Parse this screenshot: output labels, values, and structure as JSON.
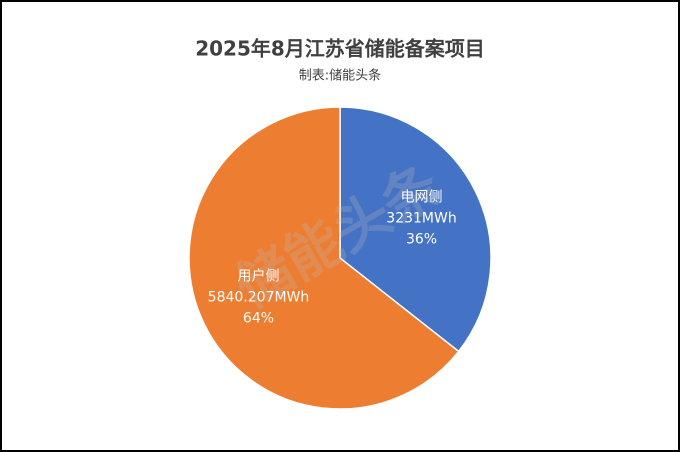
{
  "chart_data": {
    "type": "pie",
    "title": "2025年8月江苏省储能备案项目",
    "subtitle": "制表:储能头条",
    "watermark": "储能头条",
    "categories": [
      "电网侧",
      "用户侧"
    ],
    "values": [
      3231,
      5840.207
    ],
    "value_labels": [
      "3231MWh",
      "5840.207MWh"
    ],
    "percent_labels": [
      "36%",
      "64%"
    ],
    "colors": [
      "#4472c4",
      "#ed7d31"
    ]
  }
}
